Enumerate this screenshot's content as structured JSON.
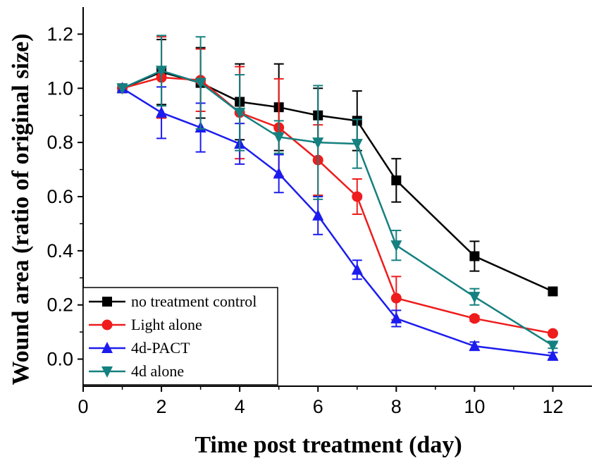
{
  "chart_data": {
    "type": "line",
    "title": "",
    "xlabel": "Time post treatment (day)",
    "ylabel": "Wound area (ratio of original size)",
    "xlim": [
      0,
      13
    ],
    "ylim": [
      -0.1,
      1.3
    ],
    "xticks": [
      0,
      2,
      4,
      6,
      8,
      10,
      12
    ],
    "xtick_labels": [
      "0",
      "2",
      "4",
      "6",
      "8",
      "10",
      "12"
    ],
    "yticks": [
      0.0,
      0.2,
      0.4,
      0.6,
      0.8,
      1.0,
      1.2
    ],
    "ytick_labels": [
      "0.0",
      "0.2",
      "0.4",
      "0.6",
      "0.8",
      "1.0",
      "1.2"
    ],
    "grid": false,
    "legend_position": "bottom-left",
    "series": [
      {
        "name": "no treatment control",
        "color": "#000000",
        "marker": "square",
        "x": [
          1,
          2,
          3,
          4,
          5,
          6,
          7,
          8,
          10,
          12
        ],
        "y": [
          1.0,
          1.06,
          1.02,
          0.95,
          0.93,
          0.9,
          0.88,
          0.66,
          0.38,
          0.25
        ],
        "err": [
          0.0,
          0.12,
          0.13,
          0.14,
          0.16,
          0.1,
          0.11,
          0.08,
          0.055,
          0.01
        ]
      },
      {
        "name": "Light alone",
        "color": "#ee1c1c",
        "marker": "circle",
        "x": [
          1,
          2,
          3,
          4,
          5,
          6,
          7,
          8,
          10,
          12
        ],
        "y": [
          1.0,
          1.04,
          1.03,
          0.91,
          0.855,
          0.735,
          0.6,
          0.225,
          0.15,
          0.095
        ],
        "err": [
          0.0,
          0.15,
          0.115,
          0.17,
          0.18,
          0.13,
          0.065,
          0.08,
          0.01,
          0.005
        ]
      },
      {
        "name": "4d-PACT",
        "color": "#1c1cee",
        "marker": "triangle-up",
        "x": [
          1,
          2,
          3,
          4,
          5,
          6,
          7,
          8,
          10,
          12
        ],
        "y": [
          1.0,
          0.91,
          0.855,
          0.795,
          0.685,
          0.53,
          0.33,
          0.15,
          0.048,
          0.012
        ],
        "err": [
          0.0,
          0.095,
          0.09,
          0.075,
          0.07,
          0.07,
          0.035,
          0.03,
          0.015,
          0.012
        ]
      },
      {
        "name": "4d alone",
        "color": "#158080",
        "marker": "triangle-down",
        "x": [
          1,
          2,
          3,
          4,
          5,
          6,
          7,
          8,
          10,
          12
        ],
        "y": [
          1.0,
          1.065,
          1.02,
          0.91,
          0.82,
          0.8,
          0.795,
          0.42,
          0.23,
          0.05
        ],
        "err": [
          0.0,
          0.13,
          0.17,
          0.14,
          0.06,
          0.21,
          0.09,
          0.055,
          0.03,
          0.01
        ]
      }
    ]
  }
}
